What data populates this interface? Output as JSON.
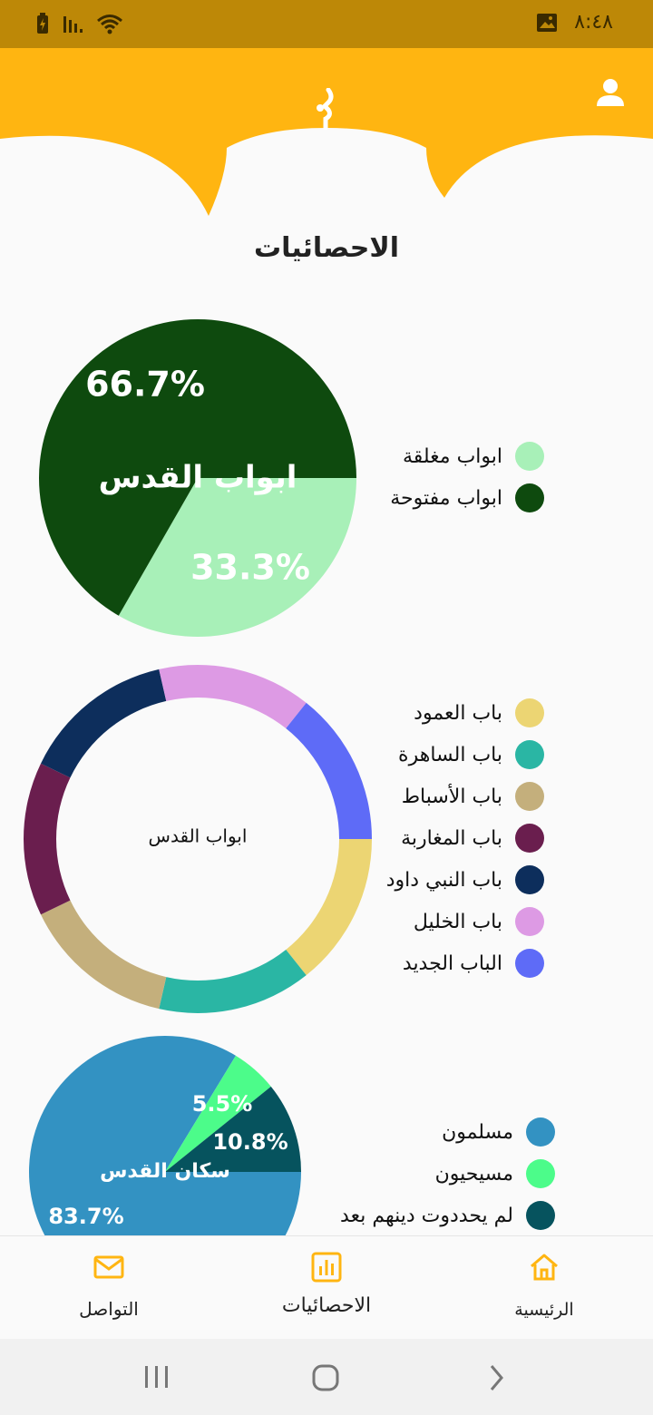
{
  "status_bar": {
    "time": "٨:٤٨",
    "icons": [
      "battery-charging-icon",
      "signal-icon",
      "wifi-icon",
      "gallery-icon"
    ]
  },
  "colors": {
    "accent": "#FFB511",
    "status": "#BD8807",
    "nav_icon": "#FFB511"
  },
  "page": {
    "title": "الاحصائيات"
  },
  "charts": [
    {
      "center_label": "ابواب القدس",
      "slice_labels": [
        "66.7%",
        "33.3%"
      ],
      "legend": [
        {
          "label": "ابواب مغلقة",
          "color": "#A8F0B8"
        },
        {
          "label": "ابواب مفتوحة",
          "color": "#0E4A0E"
        }
      ]
    },
    {
      "center_label": "ابواب القدس",
      "legend": [
        {
          "label": "باب العمود",
          "color": "#ECD573"
        },
        {
          "label": "باب الساهرة",
          "color": "#2AB6A4"
        },
        {
          "label": "باب الأسباط",
          "color": "#C4AF7C"
        },
        {
          "label": "باب المغاربة",
          "color": "#6A1E4E"
        },
        {
          "label": "باب النبي داود",
          "color": "#0D2E5C"
        },
        {
          "label": "باب الخليل",
          "color": "#DD9AE4"
        },
        {
          "label": "الباب الجديد",
          "color": "#5E6BF7"
        }
      ]
    },
    {
      "center_label": "سكان القدس",
      "slice_labels": [
        "83.7%",
        "5.5%",
        "10.8%"
      ],
      "legend": [
        {
          "label": "مسلمون",
          "color": "#3392C2"
        },
        {
          "label": "مسيحيون",
          "color": "#4CFC8A"
        },
        {
          "label": "لم يحددوت دينهم بعد",
          "color": "#06535E"
        }
      ]
    }
  ],
  "chart_data": [
    {
      "type": "pie",
      "categories": [
        "ابواب مغلقة",
        "ابواب مفتوحة"
      ],
      "values": [
        33.3,
        66.7
      ],
      "title": "ابواب القدس"
    },
    {
      "type": "pie",
      "categories": [
        "باب العمود",
        "باب الساهرة",
        "باب الأسباط",
        "باب المغاربة",
        "باب النبي داود",
        "باب الخليل",
        "الباب الجديد"
      ],
      "values": [
        1,
        1,
        1,
        1,
        1,
        1,
        1
      ],
      "title": "ابواب القدس"
    },
    {
      "type": "pie",
      "categories": [
        "مسلمون",
        "مسيحيون",
        "لم يحددوت دينهم بعد"
      ],
      "values": [
        83.7,
        5.5,
        10.8
      ],
      "title": "سكان القدس"
    }
  ],
  "bottom_nav": {
    "items": [
      {
        "label": "التواصل",
        "icon": "mail-icon"
      },
      {
        "label": "الاحصائيات",
        "icon": "bar-chart-icon"
      },
      {
        "label": "الرئيسية",
        "icon": "home-icon"
      }
    ]
  },
  "system_nav": {
    "icons": [
      "recent-apps-icon",
      "home-circle-icon",
      "back-icon"
    ]
  }
}
